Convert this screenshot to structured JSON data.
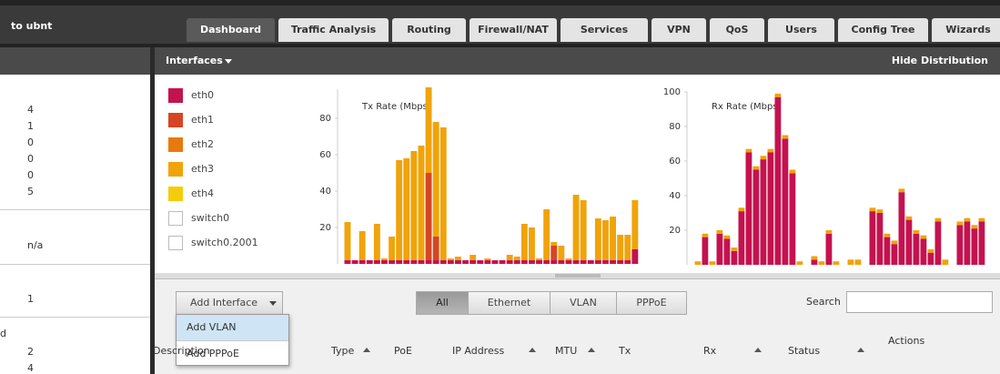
{
  "topbar": {
    "title": "to ubnt",
    "tabs": [
      "Dashboard",
      "Traffic Analysis",
      "Routing",
      "Firewall/NAT",
      "Services",
      "VPN",
      "QoS",
      "Users",
      "Config Tree",
      "Wizards"
    ],
    "active": 0
  },
  "sidebar": {
    "groups": [
      [
        "4",
        "1",
        "0",
        "0",
        "0",
        "5"
      ],
      [
        "n/a"
      ],
      [
        "1"
      ],
      [
        "d",
        "2",
        "4"
      ]
    ]
  },
  "panel": {
    "title": "Interfaces",
    "action": "Hide Distribution"
  },
  "legend": [
    {
      "name": "eth0",
      "color": "#c4124f"
    },
    {
      "name": "eth1",
      "color": "#d64523"
    },
    {
      "name": "eth2",
      "color": "#e87a0d"
    },
    {
      "name": "eth3",
      "color": "#f0a30a"
    },
    {
      "name": "eth4",
      "color": "#f5cc0a"
    },
    {
      "name": "switch0",
      "color": "#ffffff"
    },
    {
      "name": "switch0.2001",
      "color": "#ffffff"
    }
  ],
  "chart_data": [
    {
      "type": "bar",
      "stacked": true,
      "title": "Tx Rate (Mbps)",
      "ylim": [
        0,
        96
      ],
      "yticks": [
        20,
        40,
        60,
        80
      ],
      "categories": [
        null,
        null,
        null,
        null,
        null,
        null,
        null,
        null,
        null,
        null,
        null,
        null,
        null,
        null,
        null,
        null,
        null,
        null,
        null,
        null,
        null,
        null,
        null,
        null,
        null,
        null,
        null,
        null,
        null,
        null,
        null,
        null,
        null,
        null,
        null,
        null,
        null,
        null,
        null,
        null
      ],
      "series": [
        {
          "name": "eth0",
          "color": "#c4124f",
          "values": [
            2,
            2,
            2,
            2,
            2,
            2,
            2,
            2,
            2,
            2,
            2,
            2,
            2,
            2,
            2,
            2,
            2,
            2,
            2,
            2,
            2,
            2,
            2,
            2,
            2,
            2,
            2,
            2,
            2,
            2,
            2,
            2,
            2,
            2,
            2,
            2,
            2,
            2,
            2,
            8
          ]
        },
        {
          "name": "eth1",
          "color": "#d64523",
          "values": [
            0,
            0,
            0,
            0,
            0,
            0,
            0,
            0,
            0,
            0,
            0,
            48,
            13,
            0,
            0,
            0,
            0,
            0,
            0,
            0,
            0,
            0,
            0,
            0,
            0,
            0,
            0,
            0,
            8,
            0,
            0,
            0,
            0,
            0,
            0,
            0,
            0,
            0,
            0,
            0
          ]
        },
        {
          "name": "eth3",
          "color": "#f0a30a",
          "values": [
            21,
            0,
            16,
            0,
            20,
            1,
            13,
            55,
            56,
            60,
            63,
            47,
            63,
            73,
            1,
            2,
            0,
            3,
            0,
            1,
            0,
            0,
            3,
            2,
            20,
            18,
            1,
            28,
            2,
            8,
            1,
            36,
            33,
            0,
            23,
            22,
            24,
            14,
            14,
            27
          ]
        }
      ]
    },
    {
      "type": "bar",
      "stacked": true,
      "title": "Rx Rate (Mbps)",
      "ylim": [
        0,
        100
      ],
      "yticks": [
        20,
        40,
        60,
        80,
        100
      ],
      "categories": [
        null,
        null,
        null,
        null,
        null,
        null,
        null,
        null,
        null,
        null,
        null,
        null,
        null,
        null,
        null,
        null,
        null,
        null,
        null,
        null,
        null,
        null,
        null,
        null,
        null,
        null,
        null,
        null,
        null,
        null,
        null,
        null,
        null,
        null,
        null,
        null,
        null,
        null,
        null,
        null
      ],
      "series": [
        {
          "name": "eth0",
          "color": "#c4124f",
          "values": [
            0,
            16,
            0,
            18,
            15,
            8,
            31,
            65,
            55,
            61,
            65,
            97,
            73,
            53,
            0,
            0,
            3,
            0,
            18,
            0,
            0,
            0,
            0,
            0,
            31,
            30,
            16,
            12,
            42,
            26,
            18,
            15,
            7,
            25,
            0,
            0,
            23,
            25,
            21,
            25
          ]
        },
        {
          "name": "eth3",
          "color": "#f0a30a",
          "values": [
            2,
            2,
            2,
            2,
            2,
            2,
            2,
            2,
            2,
            2,
            2,
            2,
            2,
            2,
            2,
            0,
            2,
            2,
            2,
            2,
            0,
            3,
            3,
            0,
            2,
            2,
            2,
            2,
            2,
            2,
            2,
            2,
            2,
            2,
            3,
            0,
            2,
            2,
            2,
            2
          ]
        }
      ]
    }
  ],
  "toolbar": {
    "add": "Add Interface",
    "filters": [
      "All",
      "Ethernet",
      "VLAN",
      "PPPoE"
    ],
    "active": 0,
    "search": "Search"
  },
  "menu": [
    "Add VLAN",
    "Add PPPoE"
  ],
  "table": {
    "headers": [
      "Description",
      "Type",
      "PoE",
      "IP Address",
      "MTU",
      "Tx",
      "Rx",
      "Status",
      "Actions"
    ]
  }
}
